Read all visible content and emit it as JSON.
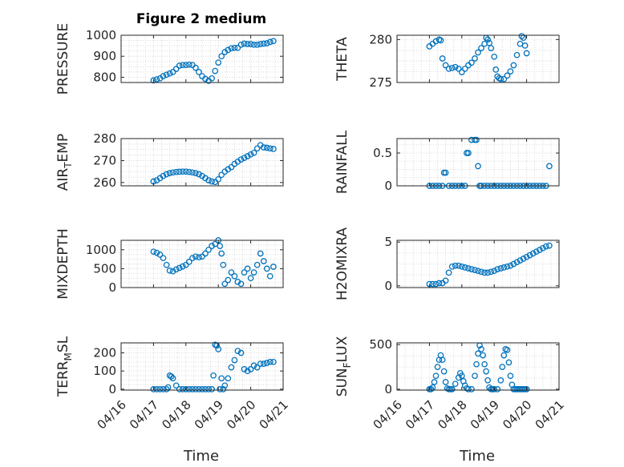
{
  "figure": {
    "title": "Figure 2 medium"
  },
  "shared": {
    "xlabel": "Time",
    "date_ticks": [
      "04/16",
      "04/17",
      "04/18",
      "04/19",
      "04/20",
      "04/21"
    ],
    "marker_color": "#0072BD",
    "grid_color": "#d9d9d9"
  },
  "chart_data": [
    {
      "type": "scatter",
      "ylabel": "PRESSURE",
      "xlim": [
        "04/16",
        "04/21"
      ],
      "ylim": [
        775,
        1000
      ],
      "yticks": [
        800,
        900,
        1000
      ],
      "grid": true,
      "series": [
        {
          "x_days": [
            17.0,
            17.1,
            17.2,
            17.3,
            17.4,
            17.5,
            17.6,
            17.7,
            17.8,
            17.9,
            18.0,
            18.1,
            18.2,
            18.3,
            18.4,
            18.5,
            18.6,
            18.7,
            18.8,
            18.9,
            19.0,
            19.1,
            19.2,
            19.3,
            19.4,
            19.5,
            19.6,
            19.7,
            19.8,
            19.9,
            20.0,
            20.1,
            20.2,
            20.3,
            20.4,
            20.5,
            20.6,
            20.7
          ],
          "values": [
            785,
            790,
            795,
            805,
            812,
            818,
            825,
            840,
            855,
            858,
            858,
            860,
            858,
            845,
            825,
            805,
            792,
            783,
            795,
            830,
            870,
            900,
            920,
            930,
            938,
            940,
            940,
            955,
            960,
            958,
            958,
            955,
            955,
            958,
            960,
            962,
            968,
            972
          ]
        }
      ]
    },
    {
      "type": "scatter",
      "ylabel": "THETA",
      "xlim": [
        "04/16",
        "04/21"
      ],
      "ylim": [
        275,
        280.5
      ],
      "yticks": [
        275,
        280
      ],
      "grid": true,
      "series": [
        {
          "x_days": [
            17.0,
            17.1,
            17.2,
            17.3,
            17.35,
            17.4,
            17.5,
            17.6,
            17.7,
            17.8,
            17.9,
            18.0,
            18.1,
            18.2,
            18.3,
            18.4,
            18.5,
            18.6,
            18.7,
            18.75,
            18.8,
            18.85,
            18.9,
            19.0,
            19.05,
            19.1,
            19.15,
            19.2,
            19.3,
            19.4,
            19.5,
            19.6,
            19.7,
            19.8,
            19.85,
            19.9,
            19.95,
            20.0
          ],
          "values": [
            279.2,
            279.5,
            279.8,
            280.0,
            279.9,
            277.8,
            277.0,
            276.6,
            276.7,
            276.8,
            276.6,
            276.2,
            276.6,
            277.0,
            277.3,
            277.8,
            278.5,
            279.0,
            279.5,
            280.2,
            280.0,
            279.6,
            279.0,
            278.0,
            276.5,
            275.7,
            275.5,
            275.4,
            275.4,
            275.8,
            276.3,
            277.0,
            278.2,
            279.5,
            280.4,
            280.2,
            279.3,
            278.4
          ]
        }
      ]
    },
    {
      "type": "scatter",
      "ylabel": "AIR_TEMP",
      "xlim": [
        "04/16",
        "04/21"
      ],
      "ylim": [
        258.5,
        280
      ],
      "yticks": [
        260,
        270,
        280
      ],
      "grid": true,
      "series": [
        {
          "x_days": [
            17.0,
            17.1,
            17.2,
            17.3,
            17.4,
            17.5,
            17.6,
            17.7,
            17.8,
            17.9,
            18.0,
            18.1,
            18.2,
            18.3,
            18.4,
            18.5,
            18.6,
            18.7,
            18.8,
            18.9,
            19.0,
            19.1,
            19.2,
            19.3,
            19.4,
            19.5,
            19.6,
            19.7,
            19.8,
            19.9,
            20.0,
            20.1,
            20.2,
            20.3,
            20.4,
            20.5,
            20.6,
            20.7
          ],
          "values": [
            260.5,
            261.0,
            262.0,
            263.0,
            263.8,
            264.3,
            264.6,
            264.8,
            264.9,
            265.0,
            265.0,
            264.8,
            264.6,
            264.3,
            263.8,
            263.0,
            262.0,
            261.0,
            260.5,
            260.2,
            261.5,
            263.5,
            265.0,
            266.0,
            267.0,
            268.5,
            269.5,
            270.5,
            271.2,
            272.0,
            272.8,
            273.5,
            275.5,
            277.0,
            276.0,
            275.8,
            275.5,
            275.3
          ]
        }
      ]
    },
    {
      "type": "scatter",
      "ylabel": "RAINFALL",
      "xlim": [
        "04/16",
        "04/21"
      ],
      "ylim": [
        0,
        0.72
      ],
      "yticks": [
        0,
        0.5
      ],
      "grid": true,
      "series": [
        {
          "x_days": [
            17.0,
            17.1,
            17.2,
            17.3,
            17.4,
            17.45,
            17.5,
            17.6,
            17.7,
            17.8,
            17.9,
            18.0,
            18.1,
            18.15,
            18.2,
            18.3,
            18.4,
            18.45,
            18.5,
            18.55,
            18.6,
            18.7,
            18.8,
            18.9,
            19.0,
            19.1,
            19.2,
            19.3,
            19.4,
            19.5,
            19.6,
            19.7,
            19.8,
            19.9,
            20.0,
            20.1,
            20.2,
            20.3,
            20.4,
            20.5,
            20.6,
            20.7
          ],
          "values": [
            0,
            0,
            0,
            0,
            0,
            0.2,
            0.2,
            0,
            0,
            0,
            0,
            0,
            0,
            0.5,
            0.5,
            0.7,
            0.7,
            0.7,
            0.3,
            0,
            0,
            0,
            0,
            0,
            0,
            0,
            0,
            0,
            0,
            0,
            0,
            0,
            0,
            0,
            0,
            0,
            0,
            0,
            0,
            0,
            0,
            0.3
          ]
        }
      ]
    },
    {
      "type": "scatter",
      "ylabel": "MIXDEPTH",
      "xlim": [
        "04/16",
        "04/21"
      ],
      "ylim": [
        0,
        1250
      ],
      "yticks": [
        0,
        500,
        1000
      ],
      "grid": true,
      "series": [
        {
          "x_days": [
            17.0,
            17.1,
            17.2,
            17.3,
            17.4,
            17.5,
            17.6,
            17.7,
            17.8,
            17.9,
            18.0,
            18.1,
            18.2,
            18.3,
            18.4,
            18.5,
            18.6,
            18.7,
            18.8,
            18.9,
            19.0,
            19.05,
            19.1,
            19.15,
            19.2,
            19.3,
            19.4,
            19.5,
            19.6,
            19.7,
            19.8,
            19.9,
            20.0,
            20.1,
            20.2,
            20.3,
            20.4,
            20.5,
            20.6,
            20.7
          ],
          "values": [
            950,
            920,
            870,
            780,
            600,
            450,
            430,
            480,
            520,
            560,
            600,
            680,
            780,
            820,
            800,
            820,
            900,
            1000,
            1100,
            1150,
            1250,
            1100,
            900,
            600,
            100,
            200,
            400,
            300,
            150,
            100,
            400,
            500,
            250,
            400,
            600,
            900,
            700,
            500,
            300,
            550
          ]
        }
      ]
    },
    {
      "type": "scatter",
      "ylabel": "H2OMIXRA",
      "xlim": [
        "04/16",
        "04/21"
      ],
      "ylim": [
        -0.2,
        5.2
      ],
      "yticks": [
        0,
        5
      ],
      "grid": true,
      "series": [
        {
          "x_days": [
            17.0,
            17.1,
            17.2,
            17.3,
            17.4,
            17.5,
            17.6,
            17.7,
            17.8,
            17.9,
            18.0,
            18.1,
            18.2,
            18.3,
            18.4,
            18.5,
            18.6,
            18.7,
            18.8,
            18.9,
            19.0,
            19.1,
            19.2,
            19.3,
            19.4,
            19.5,
            19.6,
            19.7,
            19.8,
            19.9,
            20.0,
            20.1,
            20.2,
            20.3,
            20.4,
            20.5,
            20.6,
            20.7
          ],
          "values": [
            0.2,
            0.2,
            0.2,
            0.3,
            0.3,
            0.6,
            1.5,
            2.2,
            2.3,
            2.3,
            2.2,
            2.1,
            2.0,
            1.9,
            1.8,
            1.7,
            1.6,
            1.5,
            1.5,
            1.6,
            1.7,
            1.9,
            2.0,
            2.1,
            2.2,
            2.3,
            2.5,
            2.7,
            2.9,
            3.1,
            3.3,
            3.5,
            3.7,
            3.9,
            4.1,
            4.3,
            4.5,
            4.6
          ]
        }
      ]
    },
    {
      "type": "scatter",
      "ylabel": "TERR_MSL",
      "xlim": [
        "04/16",
        "04/21"
      ],
      "ylim": [
        -5,
        255
      ],
      "yticks": [
        0,
        100,
        200
      ],
      "grid": true,
      "series": [
        {
          "x_days": [
            17.0,
            17.1,
            17.2,
            17.3,
            17.4,
            17.45,
            17.5,
            17.55,
            17.6,
            17.7,
            17.8,
            17.9,
            18.0,
            18.1,
            18.2,
            18.3,
            18.4,
            18.5,
            18.6,
            18.7,
            18.8,
            18.85,
            18.9,
            18.95,
            19.0,
            19.05,
            19.1,
            19.15,
            19.2,
            19.3,
            19.4,
            19.5,
            19.6,
            19.7,
            19.8,
            19.9,
            20.0,
            20.1,
            20.2,
            20.3,
            20.4,
            20.5,
            20.6,
            20.7
          ],
          "values": [
            0,
            0,
            0,
            0,
            0,
            10,
            75,
            70,
            60,
            20,
            0,
            0,
            0,
            0,
            0,
            0,
            0,
            0,
            0,
            0,
            0,
            75,
            245,
            240,
            220,
            0,
            60,
            0,
            20,
            60,
            120,
            160,
            210,
            200,
            110,
            100,
            110,
            130,
            120,
            140,
            140,
            145,
            150,
            150
          ]
        }
      ]
    },
    {
      "type": "scatter",
      "ylabel": "SUN_FLUX",
      "xlim": [
        "04/16",
        "04/21"
      ],
      "ylim": [
        -10,
        520
      ],
      "yticks": [
        0,
        500
      ],
      "grid": true,
      "series": [
        {
          "x_days": [
            17.0,
            17.05,
            17.1,
            17.15,
            17.2,
            17.25,
            17.3,
            17.35,
            17.4,
            17.45,
            17.5,
            17.55,
            17.6,
            17.65,
            17.7,
            17.8,
            17.9,
            17.95,
            18.0,
            18.05,
            18.1,
            18.15,
            18.2,
            18.3,
            18.4,
            18.45,
            18.5,
            18.55,
            18.6,
            18.65,
            18.7,
            18.75,
            18.8,
            18.85,
            18.9,
            18.95,
            19.0,
            19.1,
            19.2,
            19.25,
            19.3,
            19.35,
            19.4,
            19.45,
            19.5,
            19.55,
            19.6,
            19.65,
            19.7,
            19.75,
            19.8,
            19.85,
            19.9,
            19.95,
            20.0
          ],
          "values": [
            0,
            0,
            20,
            80,
            150,
            250,
            330,
            380,
            330,
            200,
            80,
            10,
            0,
            0,
            0,
            60,
            130,
            180,
            150,
            90,
            40,
            10,
            0,
            0,
            150,
            280,
            400,
            490,
            450,
            380,
            280,
            200,
            100,
            20,
            0,
            0,
            0,
            0,
            100,
            250,
            380,
            450,
            440,
            300,
            150,
            50,
            0,
            0,
            0,
            0,
            0,
            0,
            0,
            0,
            0
          ]
        }
      ]
    }
  ]
}
